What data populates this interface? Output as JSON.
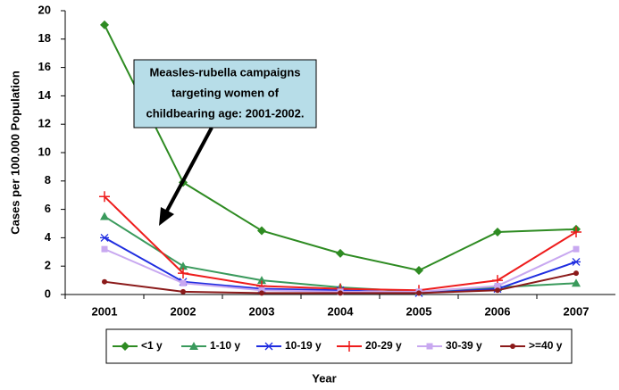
{
  "chart_data": {
    "type": "line",
    "x_label": "Year",
    "y_label": "Cases per 100.000 Population",
    "annotation": [
      "Measles-rubella campaigns",
      "targeting women of",
      "childbearing age: 2001-2002."
    ],
    "categories": [
      "2001",
      "2002",
      "2003",
      "2004",
      "2005",
      "2006",
      "2007"
    ],
    "ylim": [
      0,
      20
    ],
    "yticks": [
      0,
      2,
      4,
      6,
      8,
      10,
      12,
      14,
      16,
      18,
      20
    ],
    "series": [
      {
        "name": "<1 y",
        "color": "#2e8b22",
        "marker": "diamond",
        "values": [
          19,
          7.9,
          4.5,
          2.9,
          1.7,
          4.4,
          4.6
        ]
      },
      {
        "name": "1-10 y",
        "color": "#3a9a5c",
        "marker": "triangle",
        "values": [
          5.5,
          2.0,
          1.0,
          0.5,
          0.2,
          0.5,
          0.8
        ]
      },
      {
        "name": "10-19 y",
        "color": "#1f2de0",
        "marker": "star",
        "values": [
          4.0,
          0.9,
          0.4,
          0.3,
          0.1,
          0.4,
          2.3
        ]
      },
      {
        "name": "20-29 y",
        "color": "#ee1c1c",
        "marker": "plus",
        "values": [
          6.9,
          1.5,
          0.6,
          0.4,
          0.3,
          1.0,
          4.4
        ]
      },
      {
        "name": "30-39 y",
        "color": "#c8a8f0",
        "marker": "square",
        "values": [
          3.2,
          0.8,
          0.3,
          0.2,
          0.2,
          0.6,
          3.2
        ]
      },
      {
        "name": ">=40 y",
        "color": "#8b1a1a",
        "marker": "circle",
        "values": [
          0.9,
          0.2,
          0.1,
          0.1,
          0.1,
          0.3,
          1.5
        ]
      }
    ]
  }
}
